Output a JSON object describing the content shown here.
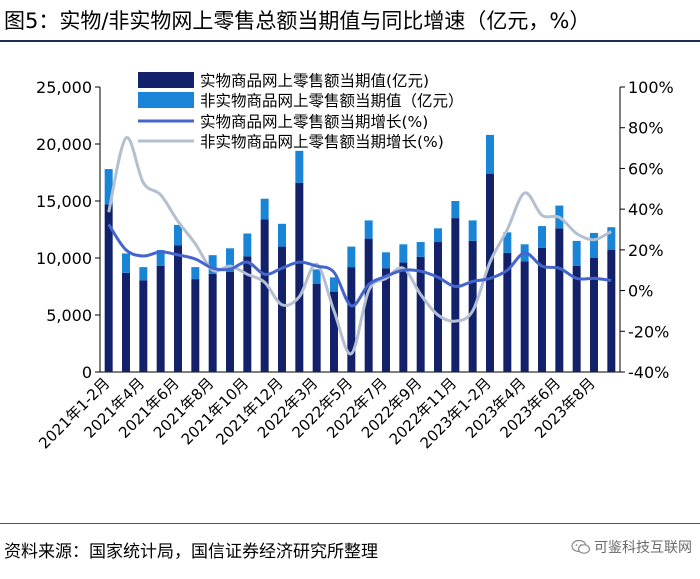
{
  "header": {
    "title": "图5：实物/非实物网上零售总额当期值与同比增速（亿元，%）"
  },
  "footer": {
    "source": "资料来源：国家统计局，国信证券经济研究所整理",
    "watermark": "可鉴科技互联网"
  },
  "colors": {
    "physical_bar": "#13216a",
    "nonphysical_bar": "#1a85d6",
    "physical_growth": "#4466cc",
    "nonphysical_growth": "#b4bfd2",
    "axis": "#000000",
    "rule": "#1a2b5c"
  },
  "chart_data": {
    "type": "bar",
    "categories": [
      "2021年1-2月",
      "2021年3月",
      "2021年4月",
      "2021年5月",
      "2021年6月",
      "2021年7月",
      "2021年8月",
      "2021年9月",
      "2021年10月",
      "2021年11月",
      "2021年12月",
      "2022年1-2月",
      "2022年3月",
      "2022年4月",
      "2022年5月",
      "2022年6月",
      "2022年7月",
      "2022年8月",
      "2022年9月",
      "2022年10月",
      "2022年11月",
      "2022年12月",
      "2023年1-2月",
      "2023年3月",
      "2023年4月",
      "2023年5月",
      "2023年6月",
      "2023年7月",
      "2023年8月",
      "2023年9月"
    ],
    "x_tick_labels": [
      "2021年1-2月",
      "2021年4月",
      "2021年6月",
      "2021年8月",
      "2021年10月",
      "2021年12月",
      "2022年3月",
      "2022年5月",
      "2022年7月",
      "2022年9月",
      "2022年11月",
      "2023年1-2月",
      "2023年4月",
      "2023年6月",
      "2023年8月"
    ],
    "series": [
      {
        "name": "实物商品网上零售额当期值(亿元)",
        "kind": "bar",
        "axis": "left",
        "stack": "total",
        "values": [
          14700,
          8700,
          8050,
          9300,
          11100,
          8150,
          8600,
          8800,
          10150,
          13400,
          11000,
          16600,
          7750,
          7050,
          9200,
          11700,
          9100,
          9600,
          10100,
          11400,
          13500,
          11500,
          17400,
          10450,
          9700,
          10900,
          12600,
          9300,
          10000,
          10700
        ]
      },
      {
        "name": "非实物商品网上零售额当期值(亿元)",
        "kind": "bar",
        "axis": "left",
        "stack": "total",
        "values": [
          3100,
          1700,
          1150,
          1400,
          1800,
          1050,
          1650,
          2050,
          2000,
          1800,
          2000,
          2800,
          1250,
          1250,
          1800,
          1600,
          1400,
          1600,
          1300,
          1200,
          1500,
          1800,
          3400,
          1800,
          1500,
          1900,
          2000,
          2200,
          2200,
          2000
        ]
      },
      {
        "name": "实物商品网上零售额当期增长(%)",
        "kind": "line",
        "axis": "right",
        "values": [
          32.5,
          20,
          17,
          19,
          17.5,
          15.5,
          11,
          10.5,
          14,
          8,
          11,
          14,
          12,
          9,
          -7.5,
          3,
          7,
          10,
          9.5,
          6.5,
          2,
          4.5,
          6,
          10,
          18.5,
          12,
          11,
          6,
          6,
          5
        ]
      },
      {
        "name": "非实物商品网上零售额当期增长(%)",
        "kind": "line",
        "axis": "right",
        "values": [
          38.5,
          75,
          53,
          47,
          34,
          23,
          10,
          12,
          8,
          4,
          -7,
          -3,
          13,
          -10,
          -31,
          0,
          6,
          11,
          -2,
          -12,
          -15,
          -10,
          14,
          30,
          48,
          37,
          36,
          28,
          25,
          29
        ]
      }
    ],
    "yaxis_left": {
      "min": 0,
      "max": 25000,
      "ticks": [
        0,
        5000,
        10000,
        15000,
        20000,
        25000
      ],
      "tick_labels": [
        "0",
        "5,000",
        "10,000",
        "15,000",
        "20,000",
        "25,000"
      ]
    },
    "yaxis_right": {
      "min": -40,
      "max": 100,
      "ticks": [
        -40,
        -20,
        0,
        20,
        40,
        60,
        80,
        100
      ],
      "tick_labels": [
        "-40%",
        "-20%",
        "0%",
        "20%",
        "40%",
        "60%",
        "80%",
        "100%"
      ]
    },
    "legend": {
      "placement": "top-center",
      "entries": [
        {
          "label": "实物商品网上零售额当期值(亿元)",
          "kind": "bar",
          "series": 0
        },
        {
          "label": "非实物商品网上零售额当期值（亿元）",
          "kind": "bar",
          "series": 1
        },
        {
          "label": "实物商品网上零售额当期增长(%)",
          "kind": "line",
          "series": 2
        },
        {
          "label": "非实物商品网上零售额当期增长(%)",
          "kind": "line",
          "series": 3
        }
      ]
    },
    "grid": false
  }
}
